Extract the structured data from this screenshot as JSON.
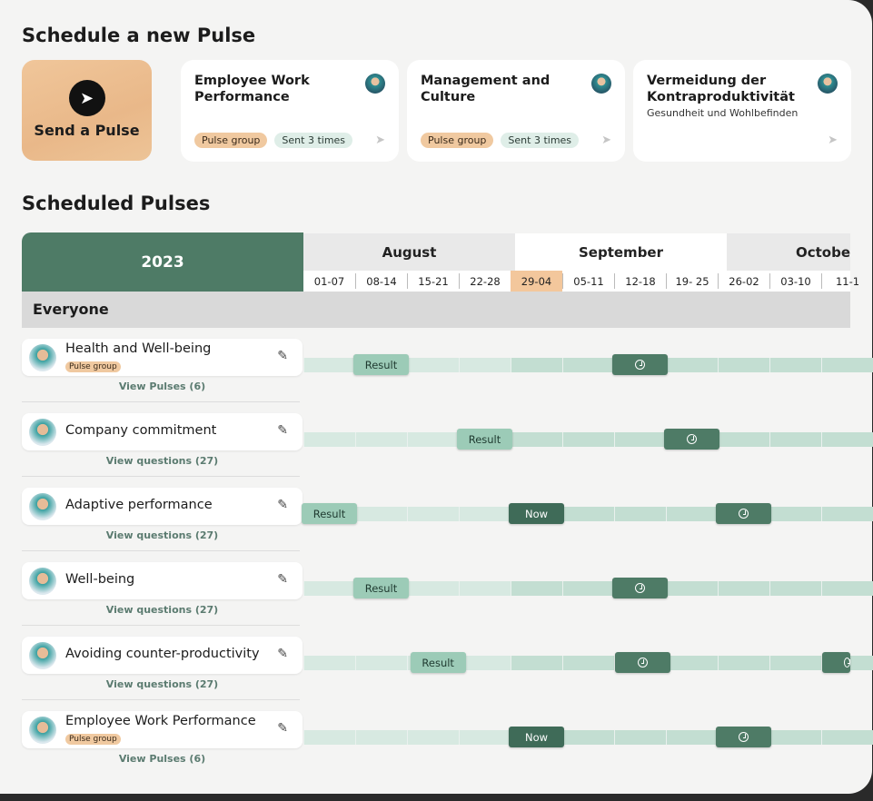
{
  "header": {
    "title": "Schedule a new Pulse",
    "send_label": "Send a Pulse"
  },
  "templates": [
    {
      "title": "Employee Work Performance",
      "subtitle": "",
      "tags": [
        "Pulse group",
        "Sent 3 times"
      ]
    },
    {
      "title": "Management and Culture",
      "subtitle": "",
      "tags": [
        "Pulse group",
        "Sent 3 times"
      ]
    },
    {
      "title": "Vermeidung der Kontraproduktivität",
      "subtitle": "Gesundheit und Wohlbefinden",
      "tags": []
    }
  ],
  "scheduled": {
    "title": "Scheduled Pulses",
    "year": "2023",
    "group": "Everyone",
    "months": [
      "August",
      "September",
      "Octobe"
    ],
    "weeks": [
      "01-07",
      "08-14",
      "15-21",
      "22-28",
      "29-04",
      "05-11",
      "12-18",
      "19- 25",
      "26-02",
      "03-10",
      "11-1"
    ],
    "current_week": "29-04"
  },
  "colors": {
    "primary": "#4e7b66",
    "result": "#9ccbb7",
    "current": "#f3c79c",
    "pulse_group": "#f0c9a0"
  },
  "rows": [
    {
      "title": "Health and Well-being",
      "badge": "Pulse group",
      "link": "View Pulses (6)",
      "markers": [
        {
          "type": "result",
          "label": "Result",
          "week": 1
        },
        {
          "type": "sched",
          "label": "",
          "week": 6
        }
      ]
    },
    {
      "title": "Company commitment",
      "badge": "",
      "link": "View questions (27)",
      "markers": [
        {
          "type": "result",
          "label": "Result",
          "week": 3
        },
        {
          "type": "sched",
          "label": "",
          "week": 7
        }
      ]
    },
    {
      "title": "Adaptive performance",
      "badge": "",
      "link": "View questions (27)",
      "markers": [
        {
          "type": "result",
          "label": "Result",
          "week": 0
        },
        {
          "type": "now",
          "label": "Now",
          "week": 4
        },
        {
          "type": "sched",
          "label": "",
          "week": 8
        }
      ]
    },
    {
      "title": "Well-being",
      "badge": "",
      "link": "View questions (27)",
      "markers": [
        {
          "type": "result",
          "label": "Result",
          "week": 1
        },
        {
          "type": "sched",
          "label": "",
          "week": 6
        }
      ]
    },
    {
      "title": "Avoiding counter-productivity",
      "badge": "",
      "link": "View questions (27)",
      "markers": [
        {
          "type": "result",
          "label": "Result",
          "week": 2.1
        },
        {
          "type": "sched",
          "label": "",
          "week": 6.05
        },
        {
          "type": "sched",
          "label": "",
          "week": 10.05
        }
      ]
    },
    {
      "title": "Employee Work Performance",
      "badge": "Pulse group",
      "link": "View Pulses (6)",
      "markers": [
        {
          "type": "now",
          "label": "Now",
          "week": 4
        },
        {
          "type": "sched",
          "label": "",
          "week": 8
        }
      ]
    }
  ]
}
